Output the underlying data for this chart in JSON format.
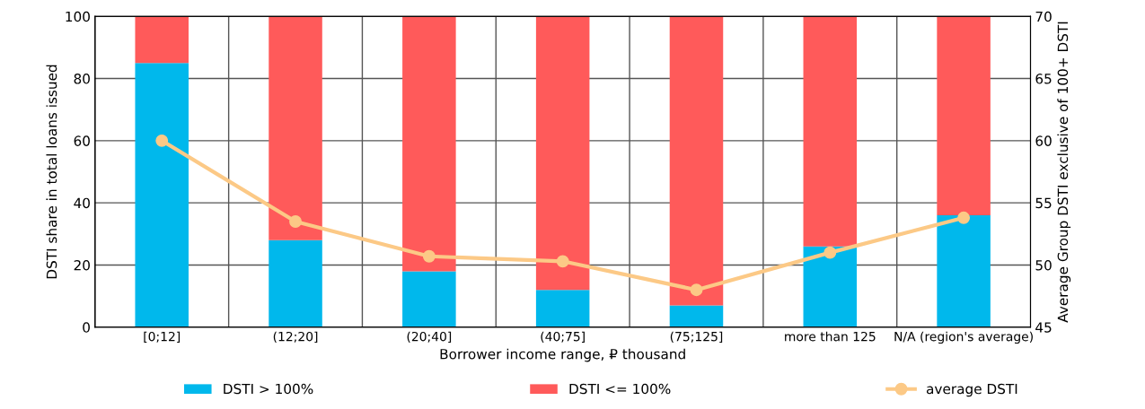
{
  "chart_data": {
    "type": "bar",
    "stacked": true,
    "xlabel": "Borrower income range, ₽ thousand",
    "ylabel": "DSTI share in total loans issued",
    "y2label": "Average Group DSTI exclusive of 100+ DSTI",
    "categories": [
      "[0;12]",
      "(12;20]",
      "(20;40]",
      "(40;75]",
      "(75;125]",
      "more than 125",
      "N/A (region's average)"
    ],
    "series": [
      {
        "name": "DSTI > 100%",
        "color": "#00b8ec",
        "values": [
          85,
          28,
          18,
          12,
          7,
          26,
          36
        ]
      },
      {
        "name": "DSTI <= 100%",
        "color": "#ff5a5a",
        "values": [
          15,
          72,
          82,
          88,
          93,
          74,
          64
        ]
      },
      {
        "name": "average DSTI",
        "type": "line",
        "axis": "y2",
        "color": "#fcc986",
        "marker": "circle",
        "values": [
          60,
          53.5,
          50.7,
          50.3,
          48,
          51,
          53.8
        ]
      }
    ],
    "ylim": [
      0,
      100
    ],
    "yticks": [
      0,
      20,
      40,
      60,
      80,
      100
    ],
    "y2lim": [
      45,
      70
    ],
    "y2ticks": [
      45,
      50,
      55,
      60,
      65,
      70
    ],
    "grid": true,
    "legend": "bottom"
  }
}
